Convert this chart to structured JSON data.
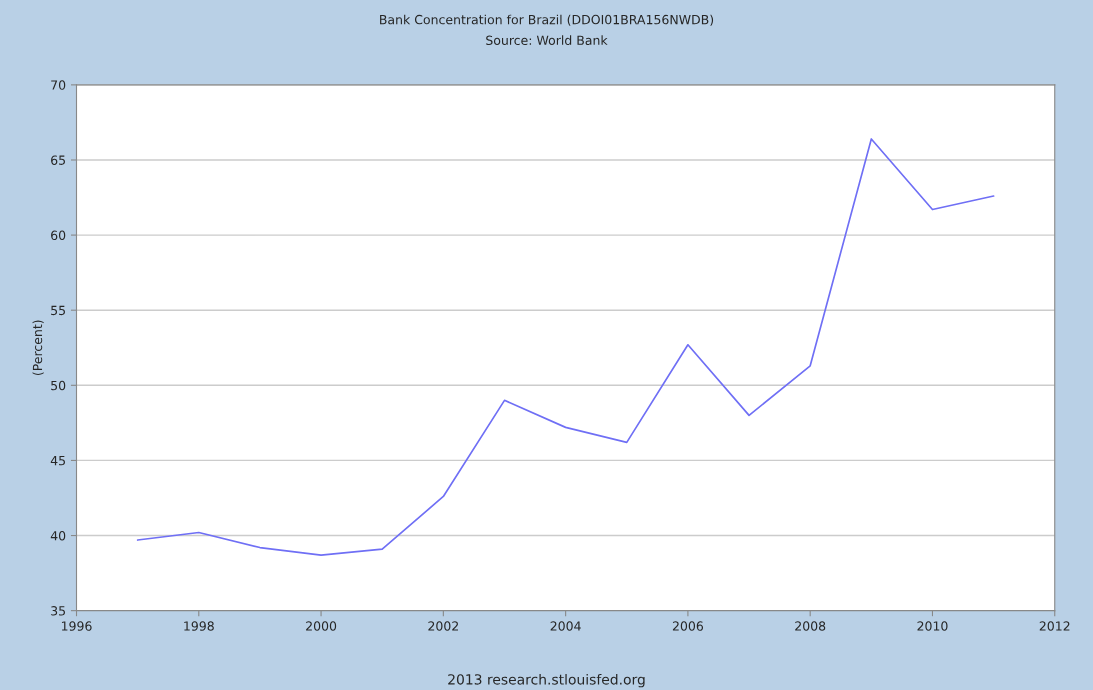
{
  "chart_data": {
    "type": "line",
    "title": "Bank Concentration for Brazil (DDOI01BRA156NWDB)",
    "subtitle": "Source: World Bank",
    "ylabel": "(Percent)",
    "annotations": [
      "2013 research.stlouisfed.org"
    ],
    "x": [
      1997,
      1998,
      1999,
      2000,
      2001,
      2002,
      2003,
      2004,
      2005,
      2006,
      2007,
      2008,
      2009,
      2010,
      2011
    ],
    "series": [
      {
        "color": "#6f6ff5",
        "values": [
          39.7,
          40.2,
          39.2,
          38.7,
          39.1,
          42.6,
          49.0,
          47.2,
          46.2,
          52.7,
          48.0,
          51.3,
          66.4,
          61.7,
          62.6
        ]
      }
    ],
    "xlim": [
      1996,
      2012
    ],
    "xticks": [
      1996,
      1998,
      2000,
      2002,
      2004,
      2006,
      2008,
      2010,
      2012
    ],
    "ylim": [
      35,
      70
    ],
    "yticks": [
      35,
      40,
      45,
      50,
      55,
      60,
      65,
      70
    ],
    "grid": "y",
    "legend": false,
    "marker": "none",
    "line_style": "solid"
  }
}
